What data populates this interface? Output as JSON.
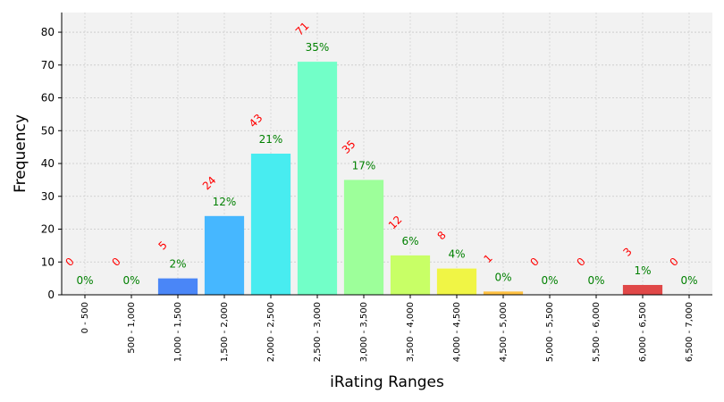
{
  "chart_data": {
    "type": "bar",
    "title": "",
    "xlabel": "iRating Ranges",
    "ylabel": "Frequency",
    "ylim": [
      0,
      86
    ],
    "yticks": [
      0,
      10,
      20,
      30,
      40,
      50,
      60,
      70,
      80
    ],
    "grid": true,
    "categories": [
      "0 - 500",
      "500 - 1,000",
      "1,000 - 1,500",
      "1,500 - 2,000",
      "2,000 - 2,500",
      "2,500 - 3,000",
      "3,000 - 3,500",
      "3,500 - 4,000",
      "4,000 - 4,500",
      "4,500 - 5,000",
      "5,000 - 5,500",
      "5,500 - 6,000",
      "6,000 - 6,500",
      "6,500 - 7,000"
    ],
    "values": [
      0,
      0,
      5,
      24,
      43,
      71,
      35,
      12,
      8,
      1,
      0,
      0,
      3,
      0
    ],
    "count_labels": [
      "0",
      "0",
      "5",
      "24",
      "43",
      "71",
      "35",
      "12",
      "8",
      "1",
      "0",
      "0",
      "3",
      "0"
    ],
    "percent_labels": [
      "0%",
      "0%",
      "2%",
      "12%",
      "21%",
      "35%",
      "17%",
      "6%",
      "4%",
      "0%",
      "0%",
      "0%",
      "1%",
      "0%"
    ],
    "bar_colors": [
      "#3a3aff",
      "#3a6aff",
      "#4a86f7",
      "#46b7ff",
      "#48ecf0",
      "#72ffc8",
      "#9dff9a",
      "#c8ff66",
      "#f0f545",
      "#ffc040",
      "#ff8a3a",
      "#ff5a3a",
      "#e04848",
      "#c03030"
    ],
    "count_label_color": "#ff0000",
    "percent_label_color": "#008000",
    "plot_background": "#f2f2f2"
  }
}
